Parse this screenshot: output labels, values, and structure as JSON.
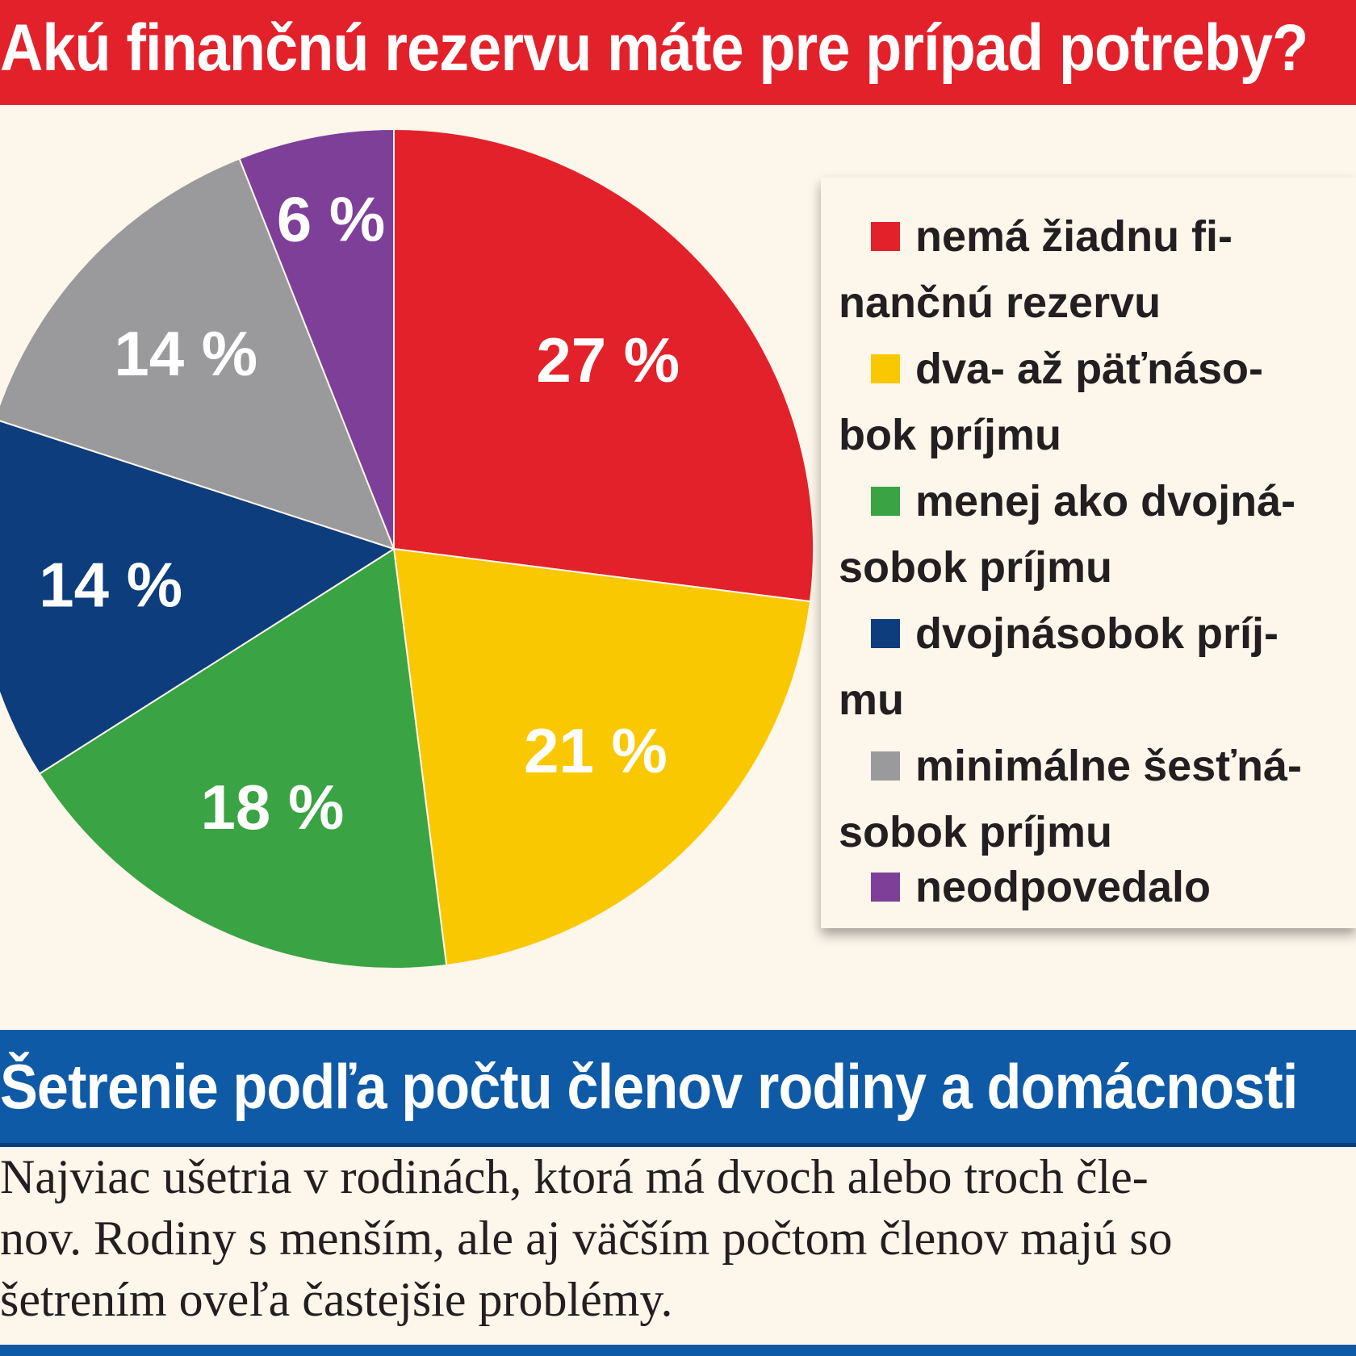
{
  "header": {
    "title": "Akú finančnú rezervu máte pre prípad potreby?"
  },
  "chart_data": {
    "type": "pie",
    "title": "Akú finančnú rezervu máte pre prípad potreby?",
    "slices": [
      {
        "label": "nemá žiadnu finančnú rezervu",
        "value": 27,
        "text": "27 %",
        "color": "#e3212b"
      },
      {
        "label": "dva- až päťnásobok príjmu",
        "value": 21,
        "text": "21 %",
        "color": "#f9c800"
      },
      {
        "label": "menej ako dvojnásobok príjmu",
        "value": 18,
        "text": "18 %",
        "color": "#3aa343"
      },
      {
        "label": "dvojnásobok príjmu",
        "value": 14,
        "text": "14 %",
        "color": "#0d3d7c"
      },
      {
        "label": "minimálne šesťnásobok príjmu",
        "value": 14,
        "text": "14 %",
        "color": "#9a9a9c"
      },
      {
        "label": "neodpovedalo",
        "value": 6,
        "text": "6 %",
        "color": "#7e3f98"
      }
    ],
    "legend_position": "right"
  },
  "legend": {
    "items": [
      {
        "text": "nemá žiadnu fi-nančnú rezervu",
        "lines": [
          "nemá žiadnu fi-",
          "nančnú rezervu"
        ],
        "color": "#e3212b"
      },
      {
        "text": "dva- až päťnáso-bok príjmu",
        "lines": [
          "dva- až päťnáso-",
          "bok príjmu"
        ],
        "color": "#f9c800"
      },
      {
        "text": "menej ako dvojná-sobok príjmu",
        "lines": [
          "menej ako dvojná-",
          "sobok príjmu"
        ],
        "color": "#3aa343"
      },
      {
        "text": "dvojnásobok príj-mu",
        "lines": [
          "dvojnásobok príj-",
          "mu"
        ],
        "color": "#0d3d7c"
      },
      {
        "text": "minimálne šesťná-sobok príjmu",
        "lines": [
          "minimálne šesťná-",
          "sobok príjmu"
        ],
        "color": "#9a9a9c"
      },
      {
        "text": "neodpovedalo",
        "lines": [
          "neodpovedalo"
        ],
        "color": "#7e3f98"
      }
    ]
  },
  "section": {
    "title": "Šetrenie podľa počtu členov rodiny a domácnosti",
    "body": "Najviac ušetria v rodinách, ktorá má dvoch alebo troch čle-nov. Rodiny s menším, ale aj väčším počtom členov majú so šetrením oveľa častejšie problémy.",
    "lines": [
      "Najviac ušetria v rodinách, ktorá má dvoch alebo troch čle-",
      "nov. Rodiny s menším, ale aj väčším počtom členov majú so",
      "šetrením oveľa častejšie problémy."
    ]
  }
}
